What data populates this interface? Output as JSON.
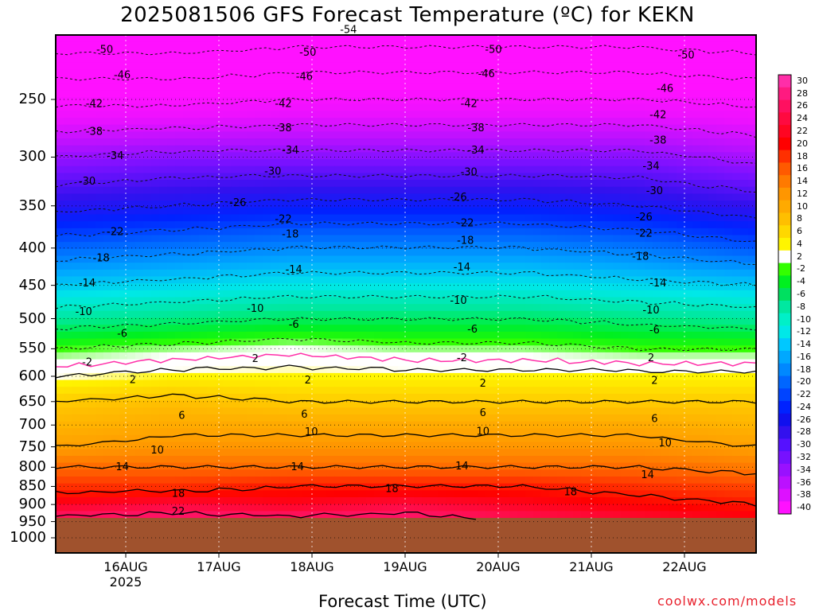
{
  "title": "2025081506 GFS Forecast Temperature (ºC) for KEKN",
  "credit": "coolwx.com/models",
  "chart_data": {
    "type": "heatmap",
    "title": "2025081506 GFS Forecast Temperature (ºC) for KEKN",
    "xlabel": "Forecast Time (UTC)",
    "ylabel": "",
    "y_scale": "log-pressure (inverted)",
    "y_ticks": [
      250,
      300,
      350,
      400,
      450,
      500,
      550,
      600,
      650,
      700,
      750,
      800,
      850,
      900,
      950,
      1000
    ],
    "x_ticks": [
      "16AUG",
      "17AUG",
      "18AUG",
      "19AUG",
      "20AUG",
      "21AUG",
      "22AUG"
    ],
    "x_tick_year": "2025",
    "grid": true,
    "colorbar_labels": [
      30,
      28,
      26,
      24,
      22,
      20,
      18,
      16,
      14,
      12,
      10,
      8,
      6,
      4,
      2,
      -2,
      -4,
      -6,
      -8,
      -10,
      -12,
      -14,
      -16,
      -18,
      -20,
      -22,
      -24,
      -26,
      -28,
      -30,
      -32,
      -34,
      -36,
      -38,
      -40
    ],
    "colorbar_colors": [
      "#ff2ea8",
      "#ff1a80",
      "#ff1060",
      "#ff0a40",
      "#ff0522",
      "#ff0000",
      "#ff3000",
      "#ff5a00",
      "#ff7a00",
      "#ff9600",
      "#ffaa00",
      "#ffbf00",
      "#ffd800",
      "#fff500",
      "#ffffff",
      "#33ff00",
      "#00f020",
      "#00e060",
      "#00e8a0",
      "#00f0c8",
      "#00e8e8",
      "#00c8ff",
      "#00a8ff",
      "#0088ff",
      "#0066ff",
      "#0044ff",
      "#0022ff",
      "#1010ee",
      "#3311ee",
      "#5511ff",
      "#7711ff",
      "#9911ff",
      "#bb11ff",
      "#dd11ff",
      "#ff11ff"
    ],
    "below_ground_color": "#a0522d",
    "contour_levels_dashed": [
      -54,
      -50,
      -46,
      -42,
      -38,
      -34,
      -30,
      -26,
      -22,
      -18,
      -14,
      -10,
      -6,
      -2
    ],
    "contour_levels_solid": [
      2,
      6,
      10,
      14,
      18,
      22
    ],
    "freezing_line_color": "#ff2ea8",
    "series": [
      {
        "level_hpa": 250,
        "values": [
          -43,
          -43,
          -42,
          -42,
          -42,
          -42,
          -43
        ]
      },
      {
        "level_hpa": 300,
        "values": [
          -34,
          -33,
          -33,
          -33,
          -33,
          -33,
          -35
        ]
      },
      {
        "level_hpa": 350,
        "values": [
          -27,
          -26,
          -25,
          -25,
          -25,
          -26,
          -28
        ]
      },
      {
        "level_hpa": 400,
        "values": [
          -20,
          -19,
          -18,
          -18,
          -18,
          -19,
          -21
        ]
      },
      {
        "level_hpa": 450,
        "values": [
          -14,
          -13,
          -12,
          -12,
          -12,
          -13,
          -14
        ]
      },
      {
        "level_hpa": 500,
        "values": [
          -8,
          -7,
          -6,
          -6,
          -6,
          -7,
          -8
        ]
      },
      {
        "level_hpa": 550,
        "values": [
          -2,
          -1,
          0,
          -1,
          -1,
          -2,
          -2
        ]
      },
      {
        "level_hpa": 600,
        "values": [
          2,
          3,
          3,
          3,
          3,
          3,
          3
        ]
      },
      {
        "level_hpa": 650,
        "values": [
          6,
          7,
          6,
          6,
          6,
          6,
          6
        ]
      },
      {
        "level_hpa": 700,
        "values": [
          8,
          9,
          9,
          9,
          9,
          9,
          8
        ]
      },
      {
        "level_hpa": 750,
        "values": [
          10,
          11,
          11,
          11,
          11,
          11,
          10
        ]
      },
      {
        "level_hpa": 800,
        "values": [
          14,
          14,
          14,
          14,
          14,
          14,
          13
        ]
      },
      {
        "level_hpa": 850,
        "values": [
          17,
          17,
          18,
          18,
          18,
          17,
          16
        ]
      },
      {
        "level_hpa": 900,
        "values": [
          20,
          21,
          20,
          21,
          20,
          19,
          18
        ]
      },
      {
        "level_hpa": 950,
        "values": [
          23,
          23,
          23,
          23,
          22,
          21,
          20
        ]
      }
    ],
    "contour_labels": [
      {
        "text": "-54",
        "t": 0.418,
        "p": 200
      },
      {
        "text": "-50",
        "t": 0.07,
        "p": 213
      },
      {
        "text": "-50",
        "t": 0.36,
        "p": 215
      },
      {
        "text": "-50",
        "t": 0.625,
        "p": 213
      },
      {
        "text": "-50",
        "t": 0.9,
        "p": 217
      },
      {
        "text": "-46",
        "t": 0.095,
        "p": 231
      },
      {
        "text": "-46",
        "t": 0.355,
        "p": 232
      },
      {
        "text": "-46",
        "t": 0.615,
        "p": 230
      },
      {
        "text": "-46",
        "t": 0.87,
        "p": 241
      },
      {
        "text": "-42",
        "t": 0.055,
        "p": 253
      },
      {
        "text": "-42",
        "t": 0.325,
        "p": 253
      },
      {
        "text": "-42",
        "t": 0.59,
        "p": 253
      },
      {
        "text": "-42",
        "t": 0.86,
        "p": 262
      },
      {
        "text": "-38",
        "t": 0.055,
        "p": 276
      },
      {
        "text": "-38",
        "t": 0.325,
        "p": 273
      },
      {
        "text": "-38",
        "t": 0.6,
        "p": 273
      },
      {
        "text": "-38",
        "t": 0.86,
        "p": 284
      },
      {
        "text": "-34",
        "t": 0.085,
        "p": 298
      },
      {
        "text": "-34",
        "t": 0.335,
        "p": 293
      },
      {
        "text": "-34",
        "t": 0.6,
        "p": 293
      },
      {
        "text": "-34",
        "t": 0.85,
        "p": 308
      },
      {
        "text": "-30",
        "t": 0.045,
        "p": 323
      },
      {
        "text": "-30",
        "t": 0.31,
        "p": 313
      },
      {
        "text": "-30",
        "t": 0.59,
        "p": 314
      },
      {
        "text": "-30",
        "t": 0.855,
        "p": 333
      },
      {
        "text": "-26",
        "t": 0.26,
        "p": 346
      },
      {
        "text": "-26",
        "t": 0.575,
        "p": 340
      },
      {
        "text": "-26",
        "t": 0.84,
        "p": 362
      },
      {
        "text": "-22",
        "t": 0.085,
        "p": 379
      },
      {
        "text": "-22",
        "t": 0.325,
        "p": 364
      },
      {
        "text": "-22",
        "t": 0.585,
        "p": 369
      },
      {
        "text": "-22",
        "t": 0.84,
        "p": 381
      },
      {
        "text": "-18",
        "t": 0.065,
        "p": 412
      },
      {
        "text": "-18",
        "t": 0.335,
        "p": 382
      },
      {
        "text": "-18",
        "t": 0.585,
        "p": 390
      },
      {
        "text": "-18",
        "t": 0.835,
        "p": 410
      },
      {
        "text": "-14",
        "t": 0.045,
        "p": 446
      },
      {
        "text": "-14",
        "t": 0.34,
        "p": 427
      },
      {
        "text": "-14",
        "t": 0.58,
        "p": 424
      },
      {
        "text": "-14",
        "t": 0.86,
        "p": 446
      },
      {
        "text": "-10",
        "t": 0.04,
        "p": 488
      },
      {
        "text": "-10",
        "t": 0.285,
        "p": 483
      },
      {
        "text": "-10",
        "t": 0.575,
        "p": 471
      },
      {
        "text": "-10",
        "t": 0.85,
        "p": 486
      },
      {
        "text": "-6",
        "t": 0.095,
        "p": 523
      },
      {
        "text": "-6",
        "t": 0.34,
        "p": 508
      },
      {
        "text": "-6",
        "t": 0.595,
        "p": 516
      },
      {
        "text": "-6",
        "t": 0.855,
        "p": 517
      },
      {
        "text": "-2",
        "t": 0.045,
        "p": 573
      },
      {
        "text": "2",
        "t": 0.285,
        "p": 566
      },
      {
        "text": "-2",
        "t": 0.58,
        "p": 565
      },
      {
        "text": "2",
        "t": 0.85,
        "p": 565
      },
      {
        "text": "2",
        "t": 0.11,
        "p": 605
      },
      {
        "text": "2",
        "t": 0.36,
        "p": 606
      },
      {
        "text": "2",
        "t": 0.61,
        "p": 612
      },
      {
        "text": "2",
        "t": 0.855,
        "p": 607
      },
      {
        "text": "6",
        "t": 0.18,
        "p": 678
      },
      {
        "text": "6",
        "t": 0.355,
        "p": 675
      },
      {
        "text": "6",
        "t": 0.61,
        "p": 672
      },
      {
        "text": "6",
        "t": 0.855,
        "p": 685
      },
      {
        "text": "10",
        "t": 0.145,
        "p": 756
      },
      {
        "text": "10",
        "t": 0.365,
        "p": 714
      },
      {
        "text": "10",
        "t": 0.61,
        "p": 713
      },
      {
        "text": "10",
        "t": 0.87,
        "p": 739
      },
      {
        "text": "14",
        "t": 0.095,
        "p": 797
      },
      {
        "text": "14",
        "t": 0.345,
        "p": 797
      },
      {
        "text": "14",
        "t": 0.58,
        "p": 795
      },
      {
        "text": "14",
        "t": 0.845,
        "p": 818
      },
      {
        "text": "18",
        "t": 0.175,
        "p": 868
      },
      {
        "text": "18",
        "t": 0.48,
        "p": 855
      },
      {
        "text": "18",
        "t": 0.735,
        "p": 863
      },
      {
        "text": "22",
        "t": 0.175,
        "p": 918
      }
    ]
  }
}
